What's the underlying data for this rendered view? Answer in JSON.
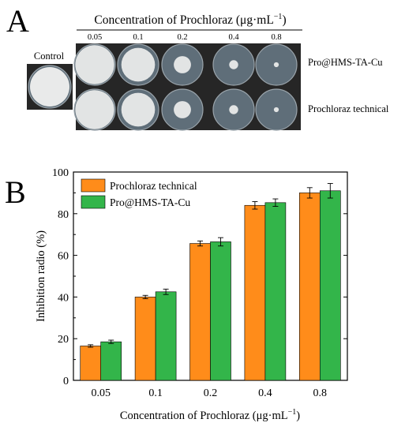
{
  "panel_a": {
    "label": "A",
    "header_prefix": "Concentration of Prochloraz (",
    "header_unit": "μg·mL",
    "header_exp": "−1",
    "header_suffix": ")",
    "control_label": "Control",
    "concentrations": [
      "0.05",
      "0.1",
      "0.2",
      "0.4",
      "0.8"
    ],
    "row_labels": [
      "Pro@HMS-TA-Cu",
      "Prochloraz technical"
    ],
    "colony_fraction": [
      [
        0.95,
        0.82,
        0.42,
        0.22,
        0.12
      ],
      [
        0.95,
        0.82,
        0.42,
        0.22,
        0.12
      ]
    ],
    "colors": {
      "plate_bg": "#262626",
      "dish": "#5f6e79",
      "colony": "#e9eaea"
    }
  },
  "panel_b": {
    "label": "B",
    "chart_data": {
      "type": "bar",
      "categories": [
        "0.05",
        "0.1",
        "0.2",
        "0.4",
        "0.8"
      ],
      "series": [
        {
          "name": "Prochloraz technical",
          "color": "#ff8c1a",
          "values": [
            16.5,
            40,
            65.7,
            84,
            90
          ],
          "errors": [
            0.6,
            0.8,
            1.2,
            1.8,
            2.5
          ]
        },
        {
          "name": "Pro@HMS-TA-Cu",
          "color": "#33b54a",
          "values": [
            18.5,
            42.5,
            66.5,
            85.3,
            91
          ],
          "errors": [
            0.8,
            1.3,
            2.0,
            1.8,
            3.5
          ]
        }
      ],
      "xlabel_prefix": "Concentration of Prochloraz (",
      "xlabel_unit": "μg·mL",
      "xlabel_exp": "−1",
      "xlabel_suffix": ")",
      "ylabel": "Inhibition radio (%)",
      "ylim": [
        0,
        100
      ],
      "yticks": [
        "0",
        "20",
        "40",
        "60",
        "80",
        "100"
      ],
      "legend_position": "top-left"
    }
  }
}
